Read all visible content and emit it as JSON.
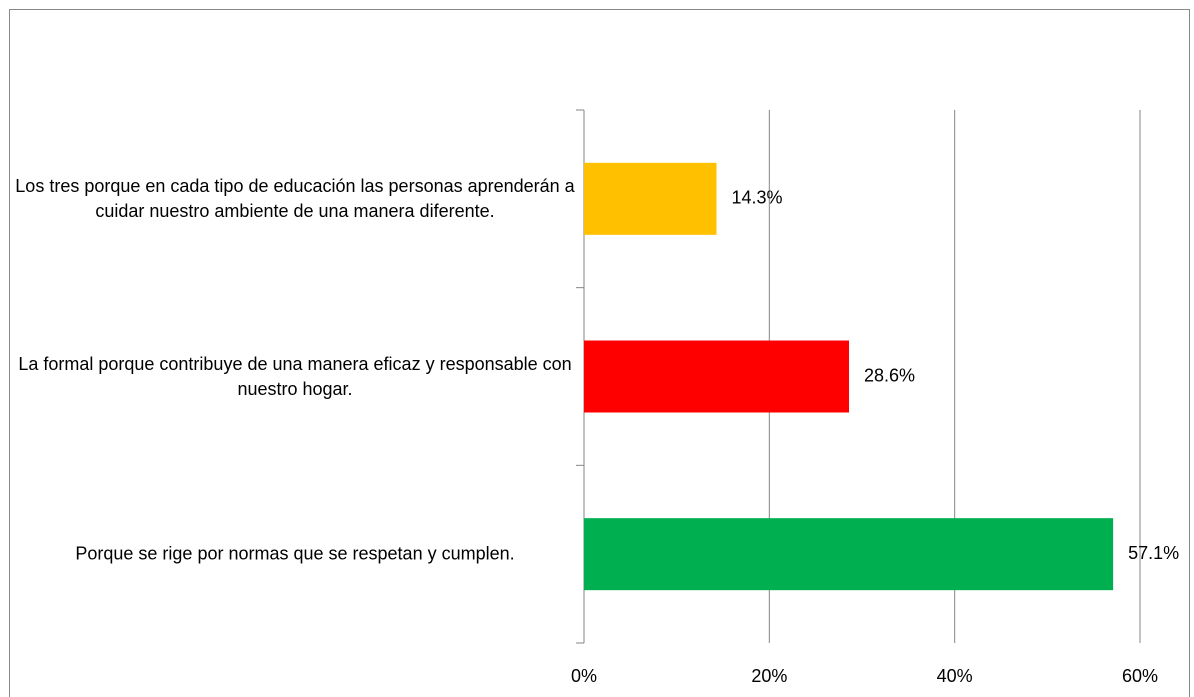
{
  "chart_data": {
    "type": "bar",
    "orientation": "horizontal",
    "categories": [
      "Los tres porque en cada tipo de educación las personas aprenderán  a cuidar nuestro ambiente de una manera diferente.",
      "La formal porque contribuye  de una manera eficaz y responsable con nuestro hogar.",
      "Porque se rige por normas que se respetan y cumplen."
    ],
    "values": [
      14.3,
      28.6,
      57.1
    ],
    "value_labels": [
      "14.3%",
      "28.6%",
      "57.1%"
    ],
    "colors": [
      "#ffc000",
      "#ff0000",
      "#00b050"
    ],
    "xlim": [
      0,
      60
    ],
    "xticks": [
      {
        "value": 0,
        "label": "0%"
      },
      {
        "value": 20,
        "label": "20%"
      },
      {
        "value": 40,
        "label": "40%"
      },
      {
        "value": 60,
        "label": "60%"
      }
    ],
    "grid": true
  }
}
